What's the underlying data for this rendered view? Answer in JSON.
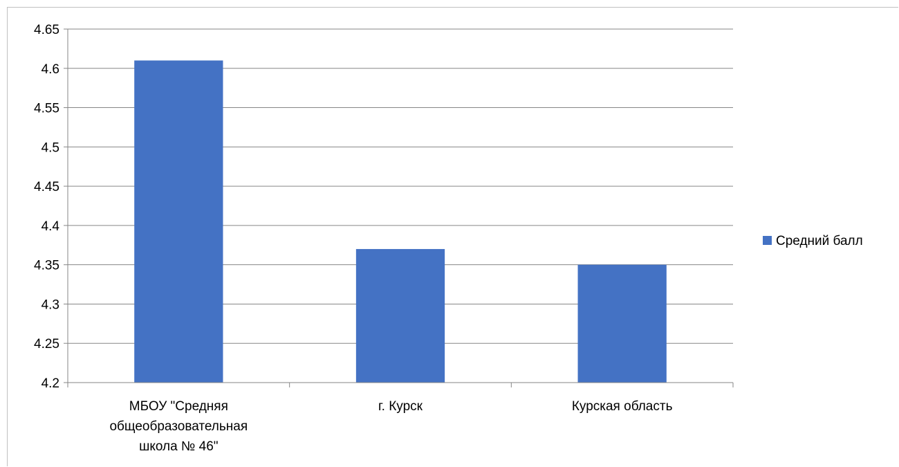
{
  "chart_data": {
    "type": "bar",
    "categories": [
      [
        "МБОУ \"Средняя",
        "общеобразовательная",
        "школа № 46\""
      ],
      [
        "г. Курск"
      ],
      [
        "Курская область"
      ]
    ],
    "series": [
      {
        "name": "Средний балл",
        "values": [
          4.61,
          4.37,
          4.35
        ],
        "color": "#4472C4"
      }
    ],
    "ylim": [
      4.2,
      4.65
    ],
    "yticks": [
      "4.2",
      "4.25",
      "4.3",
      "4.35",
      "4.4",
      "4.45",
      "4.5",
      "4.55",
      "4.6",
      "4.65"
    ],
    "grid": true,
    "legend_position": "right",
    "title": "",
    "xlabel": "",
    "ylabel": ""
  }
}
